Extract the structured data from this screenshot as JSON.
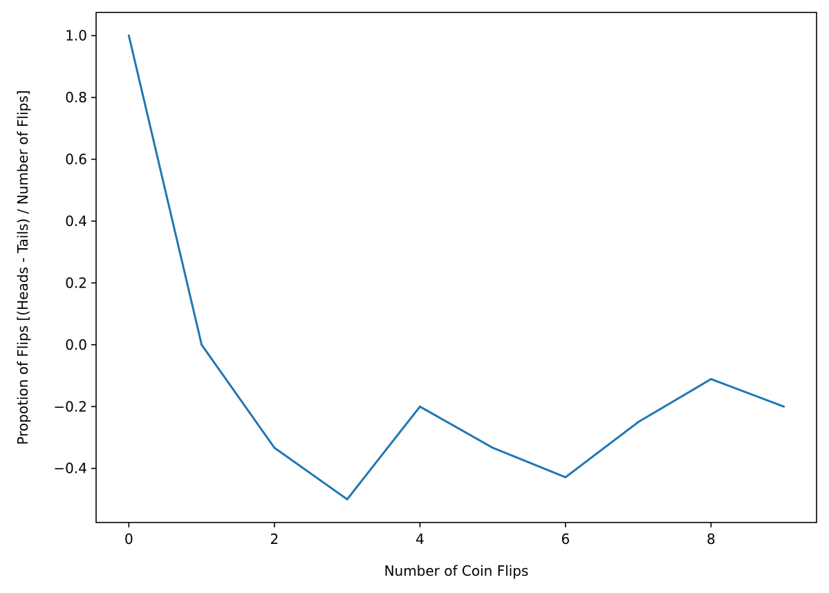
{
  "chart_data": {
    "type": "line",
    "title": "",
    "xlabel": "Number of Coin Flips",
    "ylabel": "Propotion of Flips [(Heads - Tails) / Number of Flips]",
    "x": [
      0,
      1,
      2,
      3,
      4,
      5,
      6,
      7,
      8,
      9
    ],
    "series": [
      {
        "values": [
          1.0,
          0.0,
          -0.3333,
          -0.5,
          -0.2,
          -0.3333,
          -0.4286,
          -0.25,
          -0.1111,
          -0.2
        ],
        "color": "#1f77b4"
      }
    ],
    "xlim": [
      -0.45,
      9.45
    ],
    "ylim": [
      -0.575,
      1.075
    ],
    "xticks": [
      0,
      2,
      4,
      6,
      8
    ],
    "xtick_labels": [
      "0",
      "2",
      "4",
      "6",
      "8"
    ],
    "yticks": [
      1.0,
      0.8,
      0.6,
      0.4,
      0.2,
      0.0,
      -0.2,
      -0.4
    ],
    "ytick_labels": [
      "1.0",
      "0.8",
      "0.6",
      "0.4",
      "0.2",
      "0.0",
      "−0.2",
      "−0.4"
    ],
    "grid": false,
    "legend": "none"
  }
}
